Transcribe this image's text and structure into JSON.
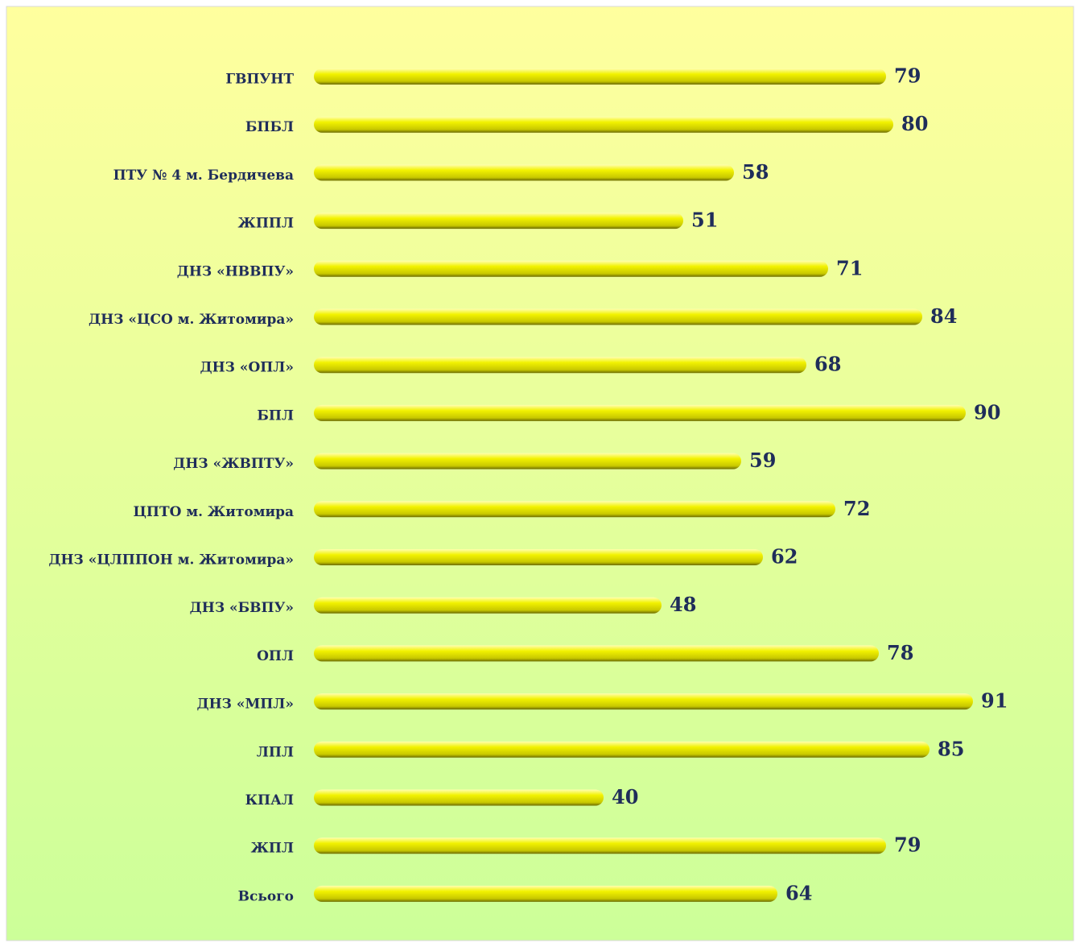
{
  "chart_data": {
    "type": "bar",
    "orientation": "horizontal",
    "categories": [
      "ГВПУНТ",
      "БПБЛ",
      "ПТУ № 4 м. Бердичева",
      "ЖППЛ",
      "ДНЗ «НВВПУ»",
      "ДНЗ «ЦСО м. Житомира»",
      "ДНЗ «ОПЛ»",
      "БПЛ",
      "ДНЗ «ЖВПТУ»",
      "ЦПТО м. Житомира",
      "ДНЗ «ЦЛППОН м. Житомира»",
      "ДНЗ «БВПУ»",
      "ОПЛ",
      "ДНЗ «МПЛ»",
      "ЛПЛ",
      "КПАЛ",
      "ЖПЛ",
      "Всього"
    ],
    "values": [
      79,
      80,
      58,
      51,
      71,
      84,
      68,
      90,
      59,
      72,
      62,
      48,
      78,
      91,
      85,
      40,
      79,
      64
    ],
    "color": "#f2f200",
    "xlim": [
      0,
      100
    ]
  }
}
